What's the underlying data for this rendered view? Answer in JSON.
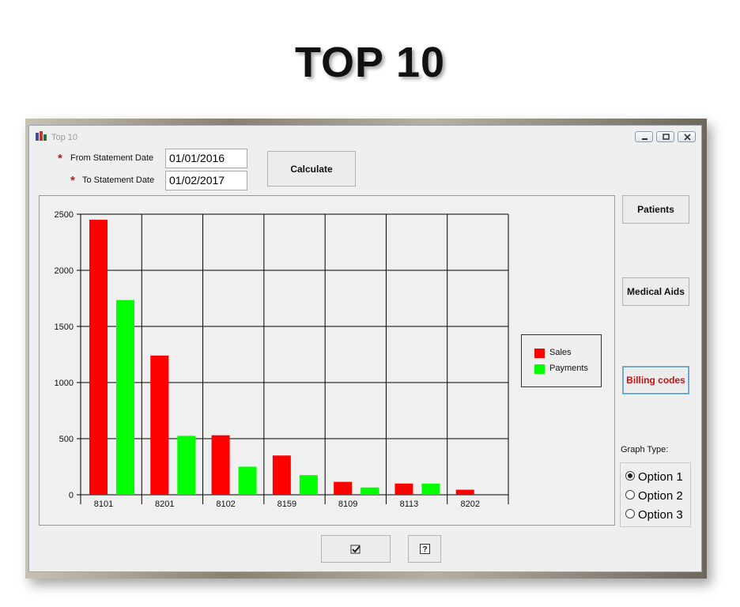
{
  "slide": {
    "title": "TOP 10"
  },
  "window": {
    "title": "Top 10",
    "controls": {
      "minimize": "minimize-icon",
      "maximize": "maximize-icon",
      "close": "close-icon"
    }
  },
  "form": {
    "from_label": "From Statement Date",
    "from_value": "01/01/2016",
    "to_label": "To Statement Date",
    "to_value": "01/02/2017",
    "required_marker": "*",
    "calculate_label": "Calculate"
  },
  "side_buttons": {
    "patients": "Patients",
    "medical_aids": "Medical Aids",
    "billing_codes": "Billing codes"
  },
  "graph_type": {
    "label": "Graph Type:",
    "options": [
      "Option 1",
      "Option 2",
      "Option 3"
    ],
    "selected": 0
  },
  "footer": {
    "ok_icon": "check-icon",
    "help_icon": "help-icon"
  },
  "chart_data": {
    "type": "bar",
    "categories": [
      "8101",
      "8201",
      "8102",
      "8159",
      "8109",
      "8113",
      "8202"
    ],
    "series": [
      {
        "name": "Sales",
        "color": "#ff0000",
        "values": [
          2450,
          1240,
          530,
          350,
          115,
          100,
          45
        ]
      },
      {
        "name": "Payments",
        "color": "#00ff00",
        "values": [
          1735,
          525,
          250,
          175,
          65,
          100,
          0
        ]
      }
    ],
    "yticks": [
      0,
      500,
      1000,
      1500,
      2000,
      2500
    ],
    "ylim": [
      0,
      2500
    ],
    "grid": true,
    "legend_position": "right"
  }
}
